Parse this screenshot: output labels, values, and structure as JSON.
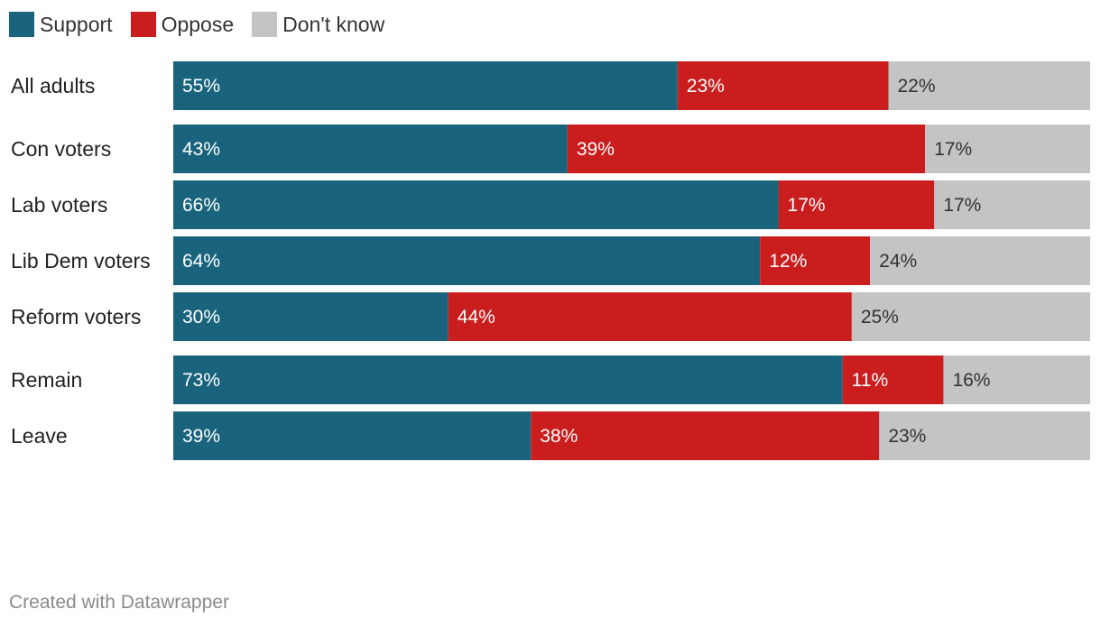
{
  "chart_data": {
    "type": "bar",
    "orientation": "horizontal",
    "stacked": true,
    "xlim": [
      0,
      100
    ],
    "legend_position": "top-left",
    "categories": [
      "All adults",
      "Con voters",
      "Lab voters",
      "Lib Dem voters",
      "Reform voters",
      "Remain",
      "Leave"
    ],
    "groups": [
      [
        "All adults"
      ],
      [
        "Con voters",
        "Lab voters",
        "Lib Dem voters",
        "Reform voters"
      ],
      [
        "Remain",
        "Leave"
      ]
    ],
    "series": [
      {
        "name": "Support",
        "color": "#19647c",
        "label_color": "#ffffff",
        "values": [
          55,
          43,
          66,
          64,
          30,
          73,
          39
        ],
        "labels": [
          "55%",
          "43%",
          "66%",
          "64%",
          "30%",
          "73%",
          "39%"
        ]
      },
      {
        "name": "Oppose",
        "color": "#c91d1e",
        "label_color": "#ffffff",
        "values": [
          23,
          39,
          17,
          12,
          44,
          11,
          38
        ],
        "labels": [
          "23%",
          "39%",
          "17%",
          "12%",
          "44%",
          "11%",
          "38%"
        ]
      },
      {
        "name": "Don't know",
        "color": "#c4c4c4",
        "label_color": "#333333",
        "values": [
          22,
          17,
          17,
          24,
          25,
          16,
          23
        ],
        "labels": [
          "22%",
          "17%",
          "17%",
          "24%",
          "25%",
          "16%",
          "23%"
        ]
      }
    ]
  },
  "footer": {
    "credit": "Created with Datawrapper"
  }
}
